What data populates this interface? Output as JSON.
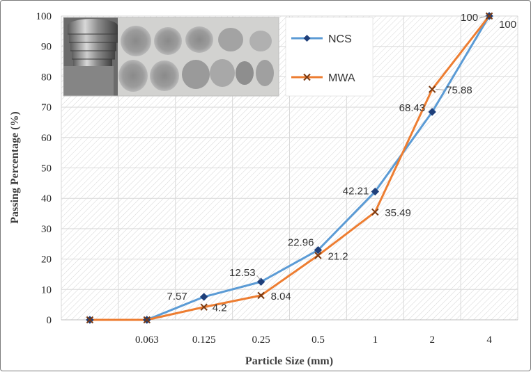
{
  "chart_data": {
    "type": "line",
    "title": "",
    "xlabel": "Particle Size (mm)",
    "ylabel": "Passing Percentage (%)",
    "categories": [
      "",
      "0.063",
      "0.125",
      "0.25",
      "0.5",
      "1",
      "2",
      "4"
    ],
    "ylim": [
      0,
      100
    ],
    "yticks": [
      "0",
      "10",
      "20",
      "30",
      "40",
      "50",
      "60",
      "70",
      "80",
      "90",
      "100"
    ],
    "grid": true,
    "legend_position": "top-center",
    "series": [
      {
        "name": "NCS",
        "color": "#5b9bd5",
        "marker": "diamond",
        "values": [
          0,
          0,
          7.57,
          12.53,
          22.96,
          42.21,
          68.43,
          100
        ],
        "labels": [
          "",
          "",
          "7.57",
          "12.53",
          "22.96",
          "42.21",
          "68.43",
          "100"
        ]
      },
      {
        "name": "MWA",
        "color": "#ed7d31",
        "marker": "x",
        "values": [
          0,
          0,
          4.2,
          8.04,
          21.2,
          35.49,
          75.88,
          100
        ],
        "labels": [
          "",
          "",
          "4.2",
          "8.04",
          "21.2",
          "35.49",
          "75.88",
          "100"
        ]
      }
    ],
    "inset_photo": "sieve-and-aggregate-samples-photo"
  }
}
